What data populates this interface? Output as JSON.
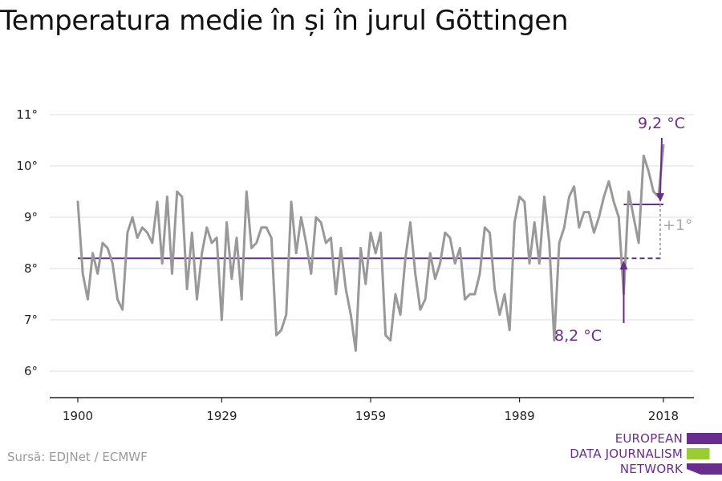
{
  "title": "Temperatura medie în și în jurul Göttingen",
  "source": "Sursă: EDJNet / ECMWF",
  "logo": {
    "lines": [
      "EUROPEAN",
      "DATA JOURNALISM",
      "NETWORK"
    ],
    "colors": {
      "purple": "#6a2c8e",
      "green": "#9acd32"
    }
  },
  "colors": {
    "series": "#999999",
    "accent": "#6a2c8e",
    "delta": "#aaaaaa",
    "grid": "#dddddd",
    "axis": "#222222"
  },
  "chart_data": {
    "type": "line",
    "title": "Temperatura medie în și în jurul Göttingen",
    "xlabel": "",
    "ylabel": "",
    "xlim": [
      1900,
      2019
    ],
    "ylim": [
      5.5,
      11.5
    ],
    "grid": true,
    "y_ticks": [
      6,
      7,
      8,
      9,
      10,
      11
    ],
    "y_tick_labels": [
      "6°",
      "7°",
      "8°",
      "9°",
      "10°",
      "11°"
    ],
    "x_ticks": [
      1900,
      1929,
      1959,
      1989,
      2018
    ],
    "x_tick_labels": [
      "1900",
      "1929",
      "1959",
      "1989",
      "2018"
    ],
    "series": [
      {
        "x_start": 1900,
        "x_end": 2018,
        "values": [
          9.3,
          7.9,
          7.4,
          8.3,
          7.9,
          8.5,
          8.4,
          8.1,
          7.4,
          7.2,
          8.7,
          9.0,
          8.6,
          8.8,
          8.7,
          8.5,
          9.3,
          8.1,
          9.4,
          7.9,
          9.5,
          9.4,
          7.6,
          8.7,
          7.4,
          8.3,
          8.8,
          8.5,
          8.6,
          7.0,
          8.9,
          7.8,
          8.6,
          7.4,
          9.5,
          8.4,
          8.5,
          8.8,
          8.8,
          8.6,
          6.7,
          6.8,
          7.1,
          9.3,
          8.3,
          9.0,
          8.5,
          7.9,
          9.0,
          8.9,
          8.5,
          8.6,
          7.5,
          8.4,
          7.6,
          7.1,
          6.4,
          8.4,
          7.7,
          8.7,
          8.3,
          8.7,
          6.7,
          6.6,
          7.5,
          7.1,
          8.2,
          8.9,
          7.9,
          7.2,
          7.4,
          8.3,
          7.8,
          8.1,
          8.7,
          8.6,
          8.1,
          8.4,
          7.4,
          7.5,
          7.5,
          7.9,
          8.8,
          8.7,
          7.6,
          7.1,
          7.5,
          6.8,
          8.9,
          9.4,
          9.3,
          8.1,
          8.9,
          8.1,
          9.4,
          8.5,
          6.6,
          8.5,
          8.8,
          9.4,
          9.6,
          8.8,
          9.1,
          9.1,
          8.7,
          9.0,
          9.4,
          9.7,
          9.3,
          9.0,
          7.5,
          9.5,
          9.0,
          8.5,
          10.2,
          9.9,
          9.5,
          9.4,
          10.4
        ]
      }
    ],
    "reference_lines": [
      {
        "label": "8,2 °C",
        "value": 8.2,
        "x_from": 1900,
        "x_to": 2018,
        "dashed_from": 2010
      },
      {
        "label": "9,2 °C",
        "value": 9.25,
        "x_from": 2010,
        "x_to": 2018
      }
    ],
    "annotations": [
      {
        "text": "8,2 °C",
        "x": 2010,
        "y": 6.8
      },
      {
        "text": "9,2 °C",
        "x": 2018,
        "y": 10.75
      },
      {
        "text": "+1°",
        "x": 2018,
        "y": 8.75
      }
    ]
  }
}
